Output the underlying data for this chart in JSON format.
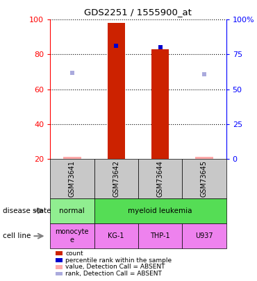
{
  "title": "GDS2251 / 1555900_at",
  "samples": [
    "GSM73641",
    "GSM73642",
    "GSM73644",
    "GSM73645"
  ],
  "count_values": [
    21,
    98,
    83,
    21
  ],
  "count_absent": [
    true,
    false,
    false,
    true
  ],
  "rank_values": [
    62,
    81,
    80,
    61
  ],
  "rank_absent": [
    true,
    false,
    false,
    true
  ],
  "ylim_left": [
    20,
    100
  ],
  "ylim_right": [
    0,
    100
  ],
  "yticks_left": [
    20,
    40,
    60,
    80,
    100
  ],
  "yticks_right": [
    0,
    25,
    50,
    75,
    100
  ],
  "ytick_labels_right": [
    "0",
    "25",
    "50",
    "75",
    "100%"
  ],
  "disease_state_colors": [
    "#90ee90",
    "#55dd55"
  ],
  "cell_line_color": "#ee82ee",
  "sample_bg_color": "#c8c8c8",
  "bar_color_present": "#cc2200",
  "bar_color_absent": "#ffaaaa",
  "rank_color_present": "#0000cc",
  "rank_color_absent": "#aaaadd",
  "legend_items": [
    {
      "color": "#cc2200",
      "label": "count"
    },
    {
      "color": "#0000cc",
      "label": "percentile rank within the sample"
    },
    {
      "color": "#ffaaaa",
      "label": "value, Detection Call = ABSENT"
    },
    {
      "color": "#aaaadd",
      "label": "rank, Detection Call = ABSENT"
    }
  ],
  "grid_yticks": [
    40,
    60,
    80,
    100
  ],
  "bar_width": 0.4,
  "rank_marker_size": 5
}
